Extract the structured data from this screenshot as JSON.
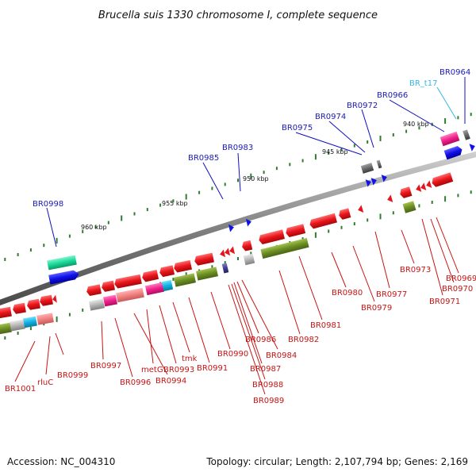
{
  "title": "Brucella suis 1330 chromosome I, complete sequence",
  "footer": {
    "accession": "Accession: NC_004310",
    "summary": "Topology: circular; Length: 2,107,794 bp; Genes: 2,169"
  },
  "colors": {
    "backbone": "#8c8c8c",
    "tick": "#2e7d32",
    "label_top": "#1a1ab8",
    "label_top_rna": "#35b7e5",
    "label_bottom": "#c81414",
    "gene_red": "#e8141c",
    "gene_blue": "#1010e8",
    "gene_green": "#6b8e23",
    "gene_pink": "#f0208a",
    "gene_salmon": "#f08080",
    "gene_grey": "#9a9a9a",
    "gene_teal": "#18d89a",
    "gene_cyan": "#10b0e0"
  },
  "kbp_labels": [
    "940 kbp",
    "945 kbp",
    "950 kbp",
    "955 kbp",
    "960 kbp"
  ],
  "gene_labels_top": [
    "BR0964",
    "BR_t17",
    "BR0966",
    "BR0972",
    "BR0974",
    "BR0975",
    "BR0983",
    "BR0985",
    "BR0998"
  ],
  "gene_labels_bottom": [
    "BR0969",
    "BR0970",
    "BR0971",
    "BR0973",
    "BR0977",
    "BR0979",
    "BR0980",
    "BR0981",
    "BR0982",
    "BR0984",
    "BR0986",
    "BR0987",
    "BR0988",
    "BR0989",
    "BR0990",
    "BR0991",
    "tmk",
    "BR0993",
    "metG",
    "BR0994",
    "BR0996",
    "BR0997",
    "BR0999",
    "rluC",
    "BR1001"
  ]
}
